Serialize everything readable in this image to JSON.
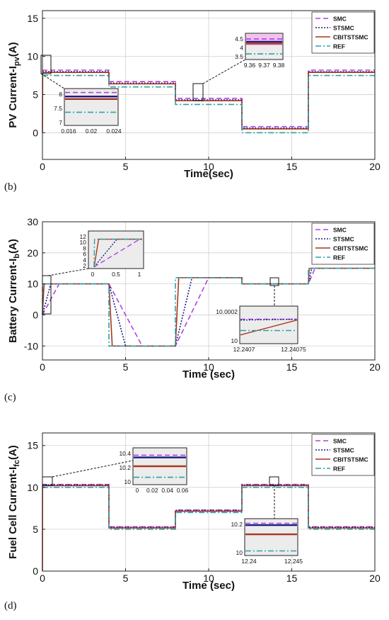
{
  "panel_labels": [
    "(b)",
    "(c)",
    "(d)"
  ],
  "chart_data": [
    {
      "type": "line",
      "panel": "(b)",
      "xlabel": "Time(sec)",
      "ylabel": "PV Current-I",
      "ylabel_sub": "pv",
      "ylabel_unit": "(A)",
      "xlim": [
        0,
        20
      ],
      "ylim": [
        -3.5,
        16
      ],
      "xticks": [
        0,
        5,
        10,
        15,
        20
      ],
      "yticks": [
        0,
        5,
        10,
        15
      ],
      "grid": true,
      "legend": "top-right",
      "legend_entries": [
        "SMC",
        "STSMC",
        "CBITSTSMC",
        "REF"
      ],
      "series": [
        {
          "name": "SMC",
          "color": "#b042e6",
          "dash": "7,4",
          "x": [
            0,
            4,
            4,
            8,
            8,
            12,
            12,
            16,
            16,
            20
          ],
          "y": [
            8.2,
            8.2,
            6.7,
            6.7,
            4.5,
            4.5,
            0.8,
            0.8,
            8.2,
            8.2
          ]
        },
        {
          "name": "STSMC",
          "color": "#1a1a80",
          "dash": "2,2",
          "x": [
            0,
            4,
            4,
            8,
            8,
            12,
            12,
            16,
            16,
            20
          ],
          "y": [
            8.0,
            8.0,
            6.5,
            6.5,
            4.3,
            4.3,
            0.6,
            0.6,
            8.0,
            8.0
          ]
        },
        {
          "name": "CBITSTSMC",
          "color": "#a8361d",
          "dash": "",
          "x": [
            0,
            0.015,
            4,
            4,
            8,
            8,
            12,
            12,
            16,
            16,
            20
          ],
          "y": [
            0,
            7.9,
            7.9,
            6.4,
            6.4,
            4.2,
            4.2,
            0.5,
            0.5,
            7.9,
            7.9
          ]
        },
        {
          "name": "REF",
          "color": "#2aa4a8",
          "dash": "8,3,2,3",
          "x": [
            0,
            4,
            4,
            8,
            8,
            12,
            12,
            16,
            16,
            20
          ],
          "y": [
            7.5,
            7.5,
            6.0,
            6.0,
            3.7,
            3.7,
            0,
            0,
            7.5,
            7.5
          ]
        }
      ],
      "insets": [
        {
          "xticks": [
            "0.016",
            "0.02",
            "0.024"
          ],
          "yticks": [
            "8",
            "7.5",
            "7"
          ],
          "ylim": [
            7,
            8.4
          ],
          "shade": "",
          "lines": [
            {
              "series": "SMC",
              "y": 8.25
            },
            {
              "series": "STSMC",
              "y": 8.1
            },
            {
              "series": "CBITSTSMC",
              "y": 8.0
            },
            {
              "series": "REF",
              "y": 7.5
            }
          ]
        },
        {
          "xticks": [
            "9.36",
            "9.37",
            "9.38"
          ],
          "yticks": [
            "4.5",
            "4",
            "3.5"
          ],
          "ylim": [
            3.4,
            4.8
          ],
          "shade": "#f3c0f0",
          "lines": [
            {
              "series": "SMC",
              "y": 4.5
            },
            {
              "series": "STSMC",
              "y": 4.35
            },
            {
              "series": "CBITSTSMC",
              "y": 4.25
            },
            {
              "series": "REF",
              "y": 3.7
            }
          ]
        }
      ]
    },
    {
      "type": "line",
      "panel": "(c)",
      "xlabel": "Time (sec)",
      "ylabel": "Battery Current-I",
      "ylabel_sub": "b",
      "ylabel_unit": "(A)",
      "xlim": [
        0,
        20
      ],
      "ylim": [
        -14.5,
        30
      ],
      "xticks": [
        0,
        5,
        10,
        15,
        20
      ],
      "yticks": [
        -10,
        0,
        10,
        20,
        30
      ],
      "grid": true,
      "legend": "top-right",
      "legend_entries": [
        "SMC",
        "STSMC",
        "CBITSTSMC",
        "REF"
      ],
      "series": [
        {
          "name": "SMC",
          "color": "#b042e6",
          "dash": "7,4",
          "x": [
            0,
            1,
            4,
            6,
            8,
            10,
            12,
            12,
            16,
            16.4,
            20
          ],
          "y": [
            0,
            10,
            10,
            -10,
            -10,
            12,
            12,
            10,
            10,
            15,
            15
          ]
        },
        {
          "name": "STSMC",
          "color": "#1a1a80",
          "dash": "2,2",
          "x": [
            0,
            0.5,
            4,
            5,
            8,
            9,
            12,
            12,
            16,
            16.2,
            20
          ],
          "y": [
            0,
            10,
            10,
            -10,
            -10,
            12,
            12,
            10,
            10,
            15,
            15
          ]
        },
        {
          "name": "CBITSTSMC",
          "color": "#a8361d",
          "dash": "",
          "x": [
            0,
            0.1,
            4,
            4.2,
            8,
            8.2,
            12,
            12,
            16,
            16.05,
            20
          ],
          "y": [
            0,
            10,
            10,
            -10,
            -10,
            12,
            12,
            10,
            10,
            15,
            15
          ]
        },
        {
          "name": "REF",
          "color": "#2aa4a8",
          "dash": "8,3,2,3",
          "x": [
            0,
            0.01,
            4,
            4,
            8,
            8,
            12,
            12,
            16,
            16,
            20
          ],
          "y": [
            0,
            10,
            10,
            -10,
            -10,
            12,
            12,
            10,
            10,
            15,
            15
          ]
        }
      ],
      "insets": [
        {
          "xticks": [
            "0",
            "0.5",
            "1"
          ],
          "yticks": [
            "12",
            "10",
            "8",
            "6",
            "4",
            "2"
          ],
          "ylim": [
            1,
            12.5
          ],
          "shade": ""
        },
        {
          "xticks": [
            "12.2407",
            "12.24075"
          ],
          "yticks": [
            "10.0002",
            "10"
          ],
          "ylim": [
            9.99985,
            10.00028
          ],
          "shade": ""
        }
      ]
    },
    {
      "type": "line",
      "panel": "(d)",
      "xlabel": "Time (sec)",
      "ylabel": "Fuel Cell Current-I",
      "ylabel_sub": "fc",
      "ylabel_unit": "(A)",
      "xlim": [
        0,
        20
      ],
      "ylim": [
        0,
        16.5
      ],
      "xticks": [
        0,
        5,
        10,
        15,
        20
      ],
      "yticks": [
        0,
        5,
        10,
        15
      ],
      "grid": true,
      "legend": "top-right",
      "legend_entries": [
        "SMC",
        "STSMC",
        "CBITSTSMC",
        "REF"
      ],
      "series": [
        {
          "name": "SMC",
          "color": "#b042e6",
          "dash": "7,4",
          "x": [
            0,
            4,
            4,
            8,
            8,
            12,
            12,
            16,
            16,
            20
          ],
          "y": [
            10.35,
            10.35,
            5.3,
            5.3,
            7.3,
            7.3,
            10.35,
            10.35,
            5.3,
            5.3
          ]
        },
        {
          "name": "STSMC",
          "color": "#1a1a80",
          "dash": "2,2",
          "x": [
            0,
            4,
            4,
            8,
            8,
            12,
            12,
            16,
            16,
            20
          ],
          "y": [
            10.3,
            10.3,
            5.25,
            5.25,
            7.25,
            7.25,
            10.3,
            10.3,
            5.25,
            5.25
          ]
        },
        {
          "name": "CBITSTSMC",
          "color": "#a8361d",
          "dash": "",
          "x": [
            0,
            0.005,
            4,
            4,
            8,
            8,
            12,
            12,
            16,
            16,
            20
          ],
          "y": [
            0,
            10.2,
            10.2,
            5.15,
            5.15,
            7.15,
            7.15,
            10.2,
            10.2,
            5.15,
            5.15
          ]
        },
        {
          "name": "REF",
          "color": "#2aa4a8",
          "dash": "8,3,2,3",
          "x": [
            0,
            4,
            4,
            8,
            8,
            12,
            12,
            16,
            16,
            20
          ],
          "y": [
            10,
            10,
            5,
            5,
            7,
            7,
            10,
            10,
            5,
            5
          ]
        }
      ],
      "insets": [
        {
          "xticks": [
            "0",
            "0.02",
            "0.04",
            "0.06"
          ],
          "yticks": [
            "10.4",
            "10.2",
            "10"
          ],
          "ylim": [
            9.95,
            10.45
          ],
          "shade": "",
          "lines": [
            {
              "series": "SMC",
              "y": 10.35
            },
            {
              "series": "STSMC",
              "y": 10.32
            },
            {
              "series": "CBITSTSMC",
              "y": 10.2
            },
            {
              "series": "REF",
              "y": 10.05
            }
          ]
        },
        {
          "xticks": [
            "12.24",
            "12.245"
          ],
          "yticks": [
            "10.2",
            "10"
          ],
          "ylim": [
            9.95,
            10.35
          ],
          "shade": "",
          "lines": [
            {
              "series": "SMC",
              "y": 10.3
            },
            {
              "series": "STSMC",
              "y": 10.28
            },
            {
              "series": "CBITSTSMC",
              "y": 10.18
            },
            {
              "series": "REF",
              "y": 10.0
            }
          ]
        }
      ]
    }
  ]
}
